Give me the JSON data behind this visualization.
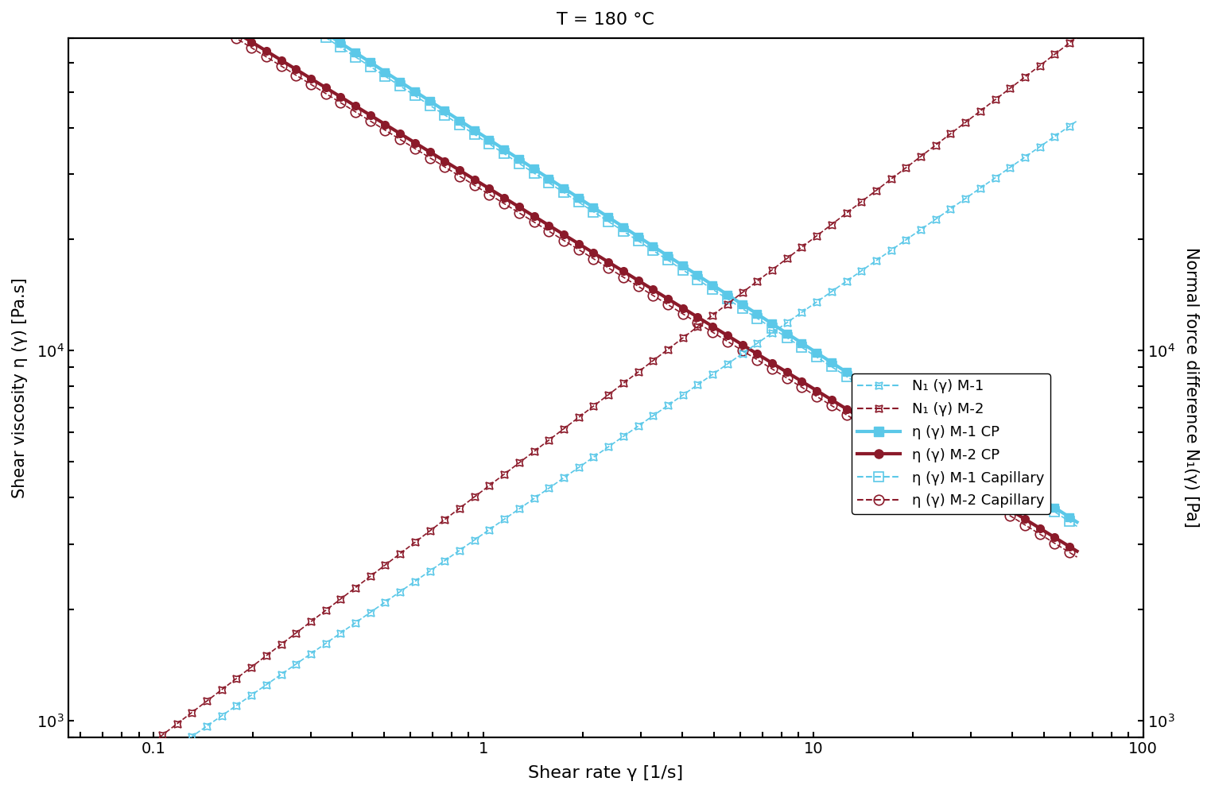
{
  "title": "T = 180 °C",
  "xlabel": "Shear rate γ [1/s]",
  "ylabel_left": "Shear viscosity η (γ) [Pa.s]",
  "ylabel_right": "Normal force difference N₁(γ) [Pa]",
  "color_blue": "#5BC8E8",
  "color_dark_red": "#8B1A2A",
  "x_min": 0.063,
  "x_max": 63.0,
  "ylim": [
    900,
    70000
  ],
  "eta_M1_CP": {
    "A": 38000,
    "n": 0.58
  },
  "eta_M2_CP": {
    "A": 28000,
    "n": 0.55
  },
  "eta_M1_Cap": {
    "A": 37000,
    "n": 0.58
  },
  "eta_M2_Cap": {
    "A": 27000,
    "n": 0.55
  },
  "N1_M1": {
    "A": 3200,
    "n": 0.62
  },
  "N1_M2": {
    "A": 4200,
    "n": 0.68
  },
  "legend_labels": [
    "N₁ (γ) M-1",
    "N₁ (γ) M-2",
    "η (γ) M-1 CP",
    "η (γ) M-2 CP",
    "η (γ) M-1 Capillary",
    "η (γ) M-2 Capillary"
  ]
}
